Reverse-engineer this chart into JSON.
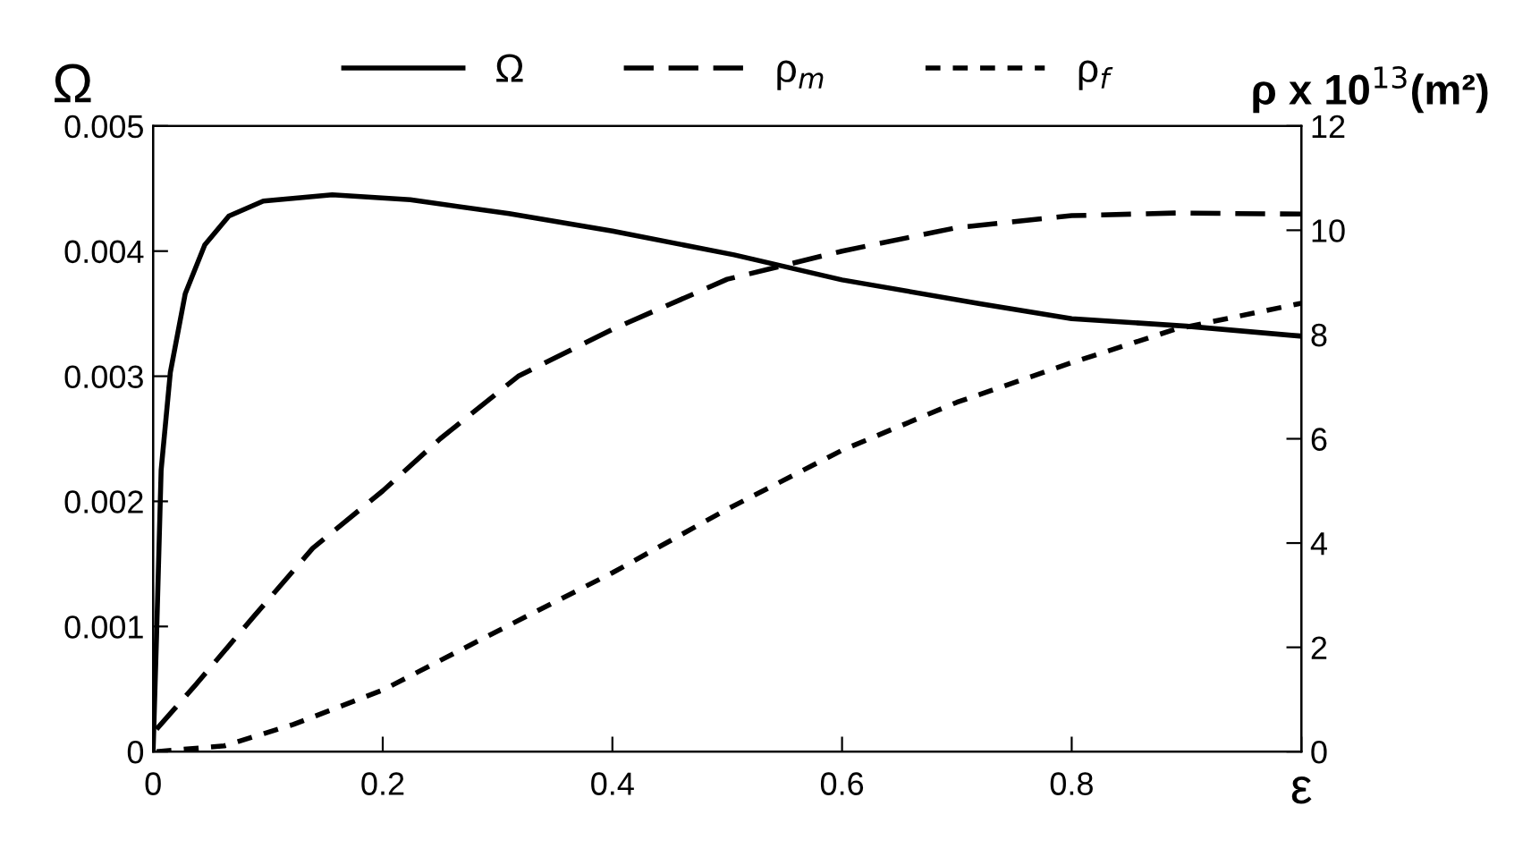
{
  "chart_data": {
    "type": "line",
    "xlabel": "ε",
    "ylabel": "Ω",
    "y2label": "ρ x 10$^{13}$(m²)",
    "xlim": [
      0,
      1
    ],
    "xticks": [
      0,
      0.2,
      0.4,
      0.6,
      0.8,
      {
        "value": 1,
        "label": null
      }
    ],
    "ylim": [
      0,
      0.005
    ],
    "yticks": [
      0,
      0.001,
      0.002,
      0.003,
      0.004,
      0.005
    ],
    "y2lim": [
      0,
      12
    ],
    "y2ticks": [
      0,
      2,
      4,
      6,
      8,
      10,
      12
    ],
    "legend": "top",
    "grid": false,
    "series": [
      {
        "name": "Ω",
        "color": "#000000",
        "line_style": "solid",
        "x": [
          0,
          0.003,
          0.007,
          0.015,
          0.028,
          0.045,
          0.066,
          0.096,
          0.156,
          0.224,
          0.31,
          0.4,
          0.506,
          0.6,
          0.72,
          0.8,
          0.9,
          1.0
        ],
        "values": [
          0,
          0.00092,
          0.00225,
          0.00303,
          0.00366,
          0.00405,
          0.00428,
          0.0044,
          0.00445,
          0.00441,
          0.0043,
          0.00416,
          0.00397,
          0.00377,
          0.00358,
          0.00346,
          0.0034,
          0.00332
        ]
      },
      {
        "name": "ρ$_{m}$",
        "color": "#000000",
        "line_style": "dashed",
        "axis": "y2",
        "x": [
          0.003,
          0.037,
          0.088,
          0.139,
          0.2,
          0.25,
          0.318,
          0.4,
          0.5,
          0.6,
          0.7,
          0.8,
          0.89,
          1.0
        ],
        "values": [
          0.43,
          1.28,
          2.6,
          3.9,
          5.0,
          6.0,
          7.2,
          8.1,
          9.06,
          9.6,
          10.05,
          10.28,
          10.33,
          10.31
        ]
      },
      {
        "name": "ρ$_{f}$",
        "color": "#000000",
        "line_style": "dotted",
        "axis": "y2",
        "x": [
          0.003,
          0.062,
          0.122,
          0.2,
          0.29,
          0.4,
          0.5,
          0.6,
          0.7,
          0.8,
          0.89,
          1.0
        ],
        "values": [
          0,
          0.11,
          0.52,
          1.18,
          2.2,
          3.43,
          4.65,
          5.78,
          6.7,
          7.46,
          8.1,
          8.6
        ]
      }
    ]
  }
}
